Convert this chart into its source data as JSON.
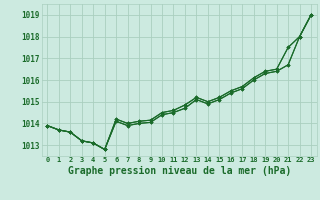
{
  "bg_color": "#cceae0",
  "grid_color": "#aacfbf",
  "line_color": "#1a6b2a",
  "marker_color": "#1a6b2a",
  "title": "Graphe pression niveau de la mer (hPa)",
  "ylim": [
    1012.5,
    1019.5
  ],
  "xlim": [
    -0.5,
    23.5
  ],
  "yticks": [
    1013,
    1014,
    1015,
    1016,
    1017,
    1018,
    1019
  ],
  "xticks": [
    0,
    1,
    2,
    3,
    4,
    5,
    6,
    7,
    8,
    9,
    10,
    11,
    12,
    13,
    14,
    15,
    16,
    17,
    18,
    19,
    20,
    21,
    22,
    23
  ],
  "series": [
    [
      1013.9,
      1013.7,
      1013.6,
      1013.2,
      1013.1,
      1012.8,
      1014.1,
      1013.9,
      1014.0,
      1014.05,
      1014.4,
      1014.5,
      1014.7,
      1015.1,
      1014.9,
      1015.1,
      1015.4,
      1015.6,
      1016.0,
      1016.3,
      1016.4,
      1016.7,
      1018.0,
      1019.0
    ],
    [
      1013.9,
      1013.7,
      1013.6,
      1013.2,
      1013.1,
      1012.8,
      1014.1,
      1013.9,
      1014.0,
      1014.05,
      1014.4,
      1014.5,
      1014.7,
      1015.1,
      1014.9,
      1015.1,
      1015.4,
      1015.6,
      1016.0,
      1016.3,
      1016.4,
      1016.7,
      1018.0,
      1019.0
    ],
    [
      1013.9,
      1013.7,
      1013.6,
      1013.2,
      1013.1,
      1012.8,
      1014.2,
      1014.0,
      1014.1,
      1014.15,
      1014.5,
      1014.6,
      1014.85,
      1015.2,
      1015.0,
      1015.2,
      1015.5,
      1015.7,
      1016.1,
      1016.4,
      1016.5,
      1017.5,
      1018.0,
      1019.0
    ],
    [
      1013.9,
      1013.7,
      1013.6,
      1013.2,
      1013.1,
      1012.8,
      1014.2,
      1014.0,
      1014.1,
      1014.15,
      1014.5,
      1014.6,
      1014.85,
      1015.2,
      1015.0,
      1015.2,
      1015.5,
      1015.7,
      1016.1,
      1016.4,
      1016.5,
      1017.5,
      1018.0,
      1019.0
    ]
  ]
}
